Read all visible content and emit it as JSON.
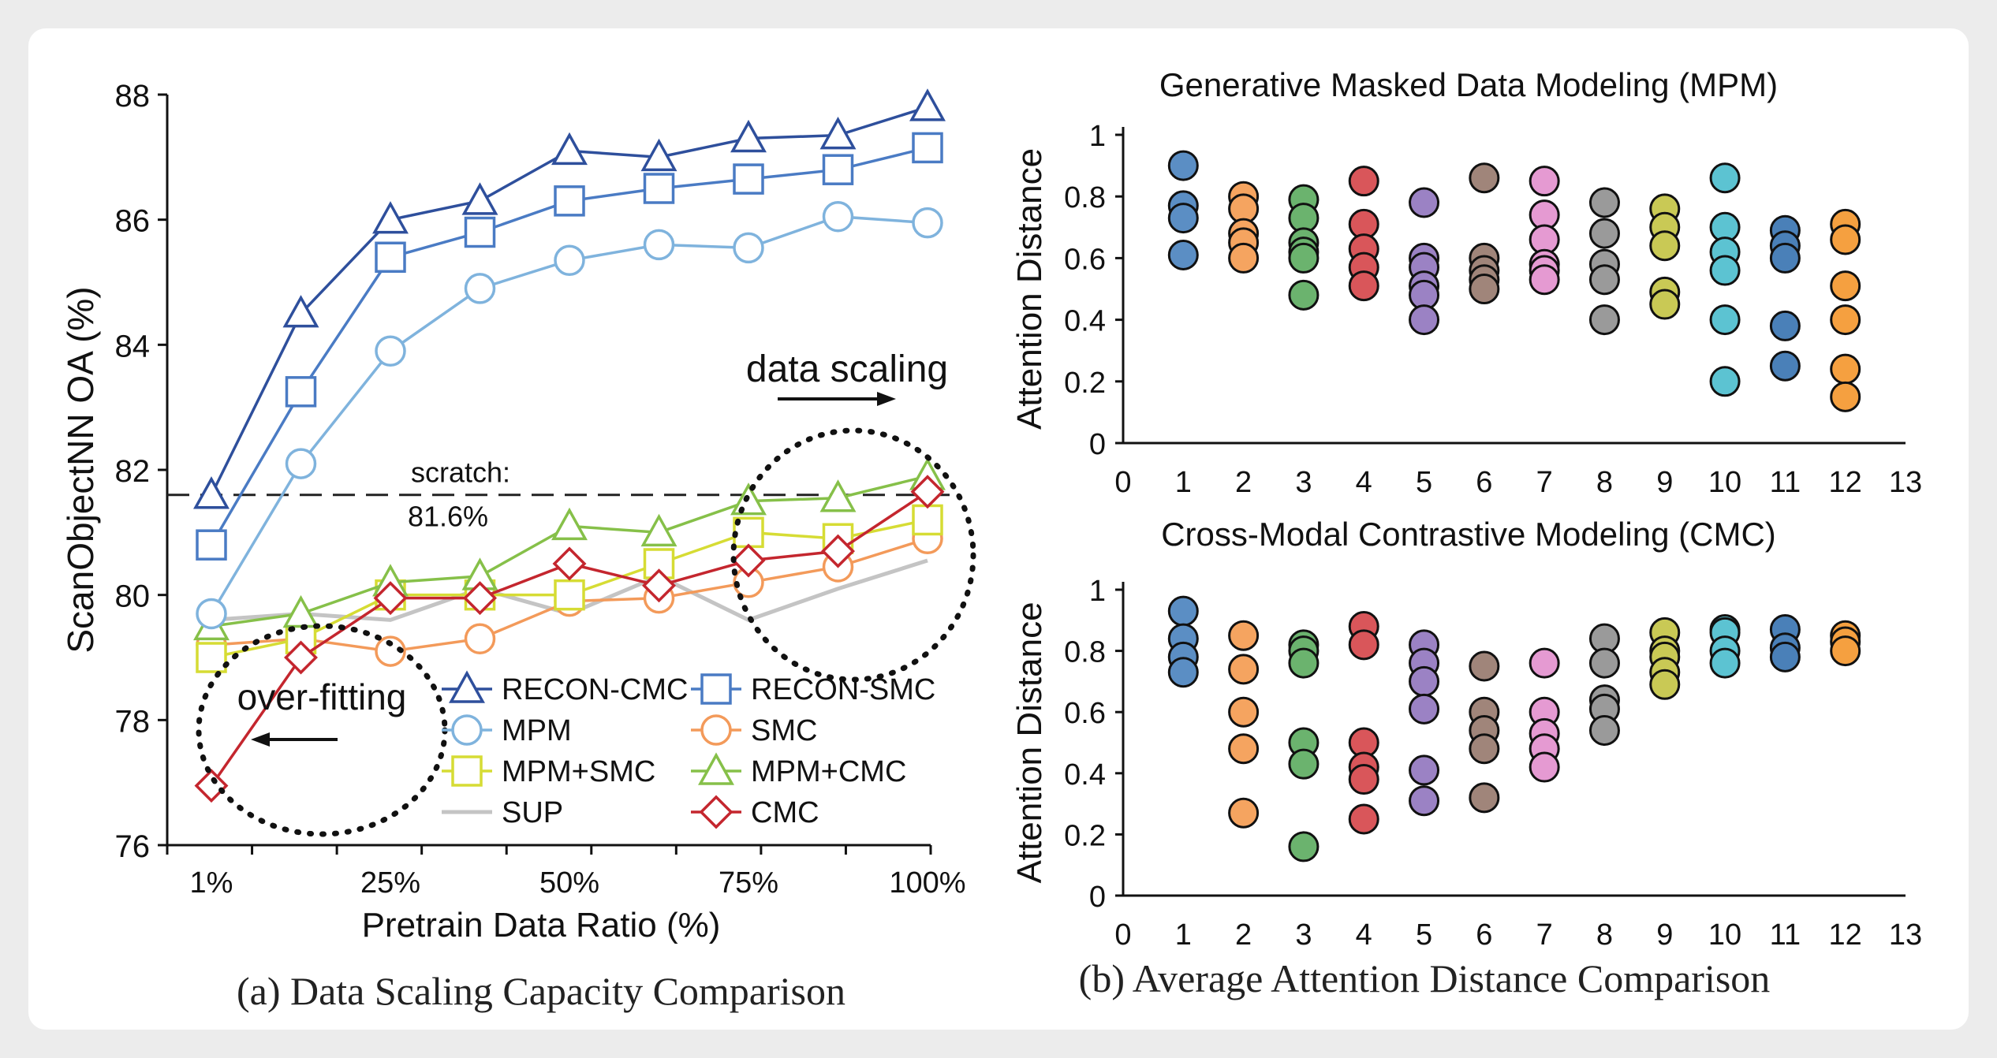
{
  "chart_data": [
    {
      "type": "line",
      "title": "",
      "caption": "(a) Data Scaling Capacity Comparison",
      "xlabel": "Pretrain Data Ratio (%)",
      "ylabel": "ScanObjectNN OA (%)",
      "ylim": [
        76,
        88
      ],
      "yticks": [
        "76",
        "78",
        "80",
        "82",
        "84",
        "86",
        "88"
      ],
      "x_ticks": [
        "1%",
        "25%",
        "50%",
        "75%",
        "100%"
      ],
      "x_points": 9,
      "series": [
        {
          "name": "RECON-CMC",
          "color": "#2e4f9c",
          "marker": "triangle",
          "values": [
            81.6,
            84.5,
            86.0,
            86.3,
            87.1,
            87.0,
            87.3,
            87.35,
            87.8
          ]
        },
        {
          "name": "RECON-SMC",
          "color": "#4a7bc4",
          "marker": "square",
          "values": [
            80.8,
            83.25,
            85.4,
            85.8,
            86.3,
            86.5,
            86.65,
            86.8,
            87.15
          ]
        },
        {
          "name": "MPM",
          "color": "#7fb3dd",
          "marker": "circle",
          "values": [
            79.7,
            82.1,
            83.9,
            84.9,
            85.35,
            85.6,
            85.55,
            86.05,
            85.95
          ]
        },
        {
          "name": "SMC",
          "color": "#f39a5a",
          "marker": "circle",
          "values": [
            79.2,
            79.3,
            79.1,
            79.3,
            79.9,
            79.95,
            80.2,
            80.45,
            80.9
          ]
        },
        {
          "name": "MPM+SMC",
          "color": "#d6dc34",
          "marker": "square",
          "values": [
            79.0,
            79.3,
            80.0,
            80.0,
            80.0,
            80.5,
            81.0,
            80.9,
            81.2
          ]
        },
        {
          "name": "MPM+CMC",
          "color": "#86c049",
          "marker": "triangle",
          "values": [
            79.5,
            79.7,
            80.2,
            80.3,
            81.1,
            81.0,
            81.5,
            81.55,
            81.9
          ]
        },
        {
          "name": "SUP",
          "color": "#c4c4c4",
          "marker": "none",
          "values": [
            79.6,
            79.7,
            79.6,
            80.1,
            79.7,
            80.3,
            79.6,
            80.1,
            80.55
          ]
        },
        {
          "name": "CMC",
          "color": "#c4262e",
          "marker": "diamond",
          "values": [
            76.95,
            79.0,
            79.95,
            79.95,
            80.5,
            80.15,
            80.55,
            80.7,
            81.65
          ]
        }
      ],
      "annotations": {
        "scratch_label": "scratch:",
        "scratch_value_label": "81.6%",
        "scratch_value": 81.6,
        "left_note": "over-fitting",
        "right_note": "data scaling"
      }
    },
    {
      "type": "scatter",
      "title": "Generative Masked Data Modeling (MPM)",
      "ylabel": "Attention Distance",
      "xlim": [
        0,
        13
      ],
      "ylim": [
        0,
        1
      ],
      "xticks": [
        "0",
        "1",
        "2",
        "3",
        "4",
        "5",
        "6",
        "7",
        "8",
        "9",
        "10",
        "11",
        "12",
        "13"
      ],
      "yticks": [
        "0",
        "0.2",
        "0.4",
        "0.6",
        "0.8",
        "1"
      ],
      "layers": [
        {
          "x": 1,
          "values": [
            0.9,
            0.77,
            0.73,
            0.61
          ]
        },
        {
          "x": 2,
          "values": [
            0.8,
            0.76,
            0.68,
            0.65,
            0.6
          ]
        },
        {
          "x": 3,
          "values": [
            0.79,
            0.73,
            0.65,
            0.62,
            0.6,
            0.48
          ]
        },
        {
          "x": 4,
          "values": [
            0.85,
            0.71,
            0.63,
            0.57,
            0.51
          ]
        },
        {
          "x": 5,
          "values": [
            0.78,
            0.6,
            0.57,
            0.51,
            0.48,
            0.4
          ]
        },
        {
          "x": 6,
          "values": [
            0.86,
            0.6,
            0.56,
            0.53,
            0.5
          ]
        },
        {
          "x": 7,
          "values": [
            0.85,
            0.74,
            0.66,
            0.58,
            0.56,
            0.53
          ]
        },
        {
          "x": 8,
          "values": [
            0.78,
            0.68,
            0.58,
            0.53,
            0.4
          ]
        },
        {
          "x": 9,
          "values": [
            0.76,
            0.7,
            0.64,
            0.49,
            0.45
          ]
        },
        {
          "x": 10,
          "values": [
            0.86,
            0.7,
            0.62,
            0.56,
            0.4,
            0.2
          ]
        },
        {
          "x": 11,
          "values": [
            0.69,
            0.64,
            0.6,
            0.38,
            0.25
          ]
        },
        {
          "x": 12,
          "values": [
            0.71,
            0.66,
            0.51,
            0.4,
            0.24,
            0.15
          ]
        }
      ],
      "layer_colors": [
        "#5b8ec4",
        "#f5a460",
        "#6bb36e",
        "#d9565a",
        "#9b82c4",
        "#a0857a",
        "#e59ad2",
        "#9a9a9a",
        "#c9c955",
        "#5cc3d2",
        "#4a80b8",
        "#f5a040"
      ]
    },
    {
      "type": "scatter",
      "title": "Cross-Modal Contrastive Modeling (CMC)",
      "ylabel": "Attention Distance",
      "xlim": [
        0,
        13
      ],
      "ylim": [
        0,
        1
      ],
      "xticks": [
        "0",
        "1",
        "2",
        "3",
        "4",
        "5",
        "6",
        "7",
        "8",
        "9",
        "10",
        "11",
        "12",
        "13"
      ],
      "yticks": [
        "0",
        "0.2",
        "0.4",
        "0.6",
        "0.8",
        "1"
      ],
      "layers": [
        {
          "x": 1,
          "values": [
            0.93,
            0.84,
            0.78,
            0.73
          ]
        },
        {
          "x": 2,
          "values": [
            0.85,
            0.74,
            0.6,
            0.48,
            0.27
          ]
        },
        {
          "x": 3,
          "values": [
            0.82,
            0.8,
            0.76,
            0.5,
            0.43,
            0.16
          ]
        },
        {
          "x": 4,
          "values": [
            0.88,
            0.82,
            0.5,
            0.42,
            0.38,
            0.25
          ]
        },
        {
          "x": 5,
          "values": [
            0.82,
            0.76,
            0.7,
            0.61,
            0.41,
            0.31
          ]
        },
        {
          "x": 6,
          "values": [
            0.75,
            0.6,
            0.54,
            0.48,
            0.32
          ]
        },
        {
          "x": 7,
          "values": [
            0.76,
            0.6,
            0.53,
            0.48,
            0.42
          ]
        },
        {
          "x": 8,
          "values": [
            0.84,
            0.76,
            0.64,
            0.61,
            0.54
          ]
        },
        {
          "x": 9,
          "values": [
            0.86,
            0.8,
            0.78,
            0.73,
            0.69
          ]
        },
        {
          "x": 10,
          "values": [
            0.87,
            0.86,
            0.8,
            0.76
          ]
        },
        {
          "x": 11,
          "values": [
            0.87,
            0.81,
            0.78
          ]
        },
        {
          "x": 12,
          "values": [
            0.85,
            0.83,
            0.8
          ]
        }
      ],
      "layer_colors": [
        "#5b8ec4",
        "#f5a460",
        "#6bb36e",
        "#d9565a",
        "#9b82c4",
        "#a0857a",
        "#e59ad2",
        "#9a9a9a",
        "#c9c955",
        "#5cc3d2",
        "#4a80b8",
        "#f5a040"
      ]
    }
  ],
  "captions": {
    "right": "(b) Average Attention Distance Comparison"
  }
}
